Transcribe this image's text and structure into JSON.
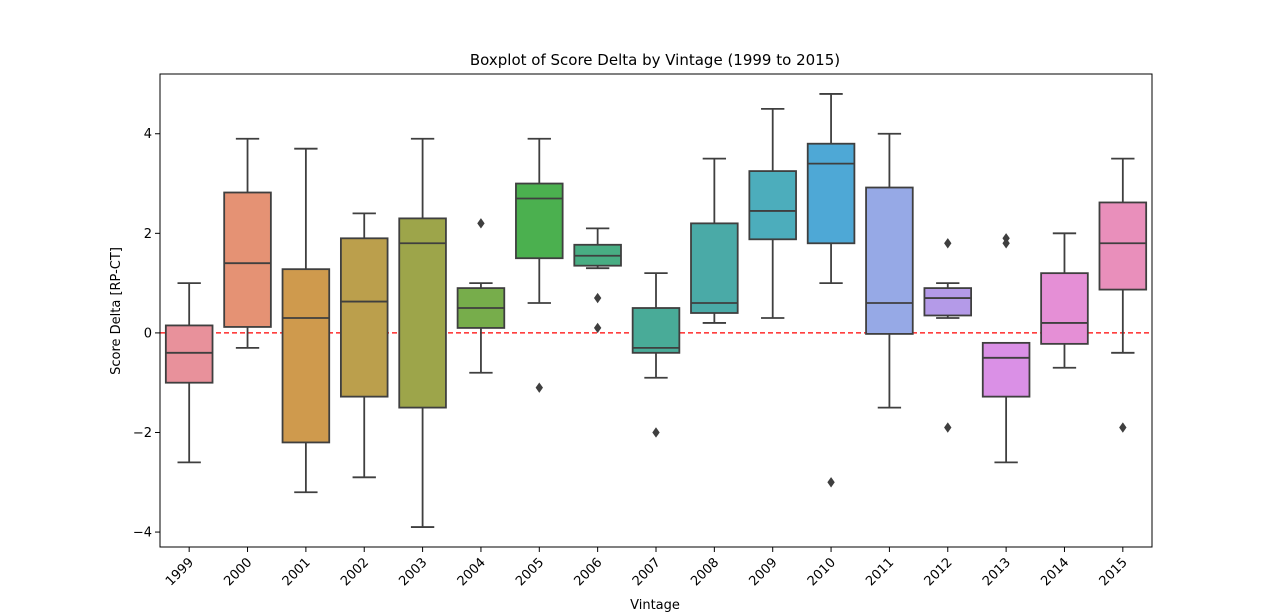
{
  "chart_data": {
    "type": "box",
    "title": "Boxplot of Score Delta by Vintage (1999 to 2015)",
    "xlabel": "Vintage",
    "ylabel": "Score Delta [RP-CT]",
    "ylim": [
      -4.3,
      5.2
    ],
    "yticks": [
      -4,
      -2,
      0,
      2,
      4
    ],
    "ytick_labels": [
      "−4",
      "−2",
      "0",
      "2",
      "4"
    ],
    "reference_line": {
      "y": 0,
      "color": "#ff0000",
      "style": "dashed"
    },
    "categories": [
      "1999",
      "2000",
      "2001",
      "2002",
      "2003",
      "2004",
      "2005",
      "2006",
      "2007",
      "2008",
      "2009",
      "2010",
      "2011",
      "2012",
      "2013",
      "2014",
      "2015"
    ],
    "boxes": [
      {
        "label": "1999",
        "color": "#e8919b",
        "whisker_low": -2.6,
        "q1": -1.0,
        "median": -0.4,
        "q3": 0.15,
        "whisker_high": 1.0,
        "outliers": []
      },
      {
        "label": "2000",
        "color": "#e59274",
        "whisker_low": -0.3,
        "q1": 0.12,
        "median": 1.4,
        "q3": 2.82,
        "whisker_high": 3.9,
        "outliers": []
      },
      {
        "label": "2001",
        "color": "#cf9a4d",
        "whisker_low": -3.2,
        "q1": -2.2,
        "median": 0.3,
        "q3": 1.28,
        "whisker_high": 3.7,
        "outliers": []
      },
      {
        "label": "2002",
        "color": "#bb9f4c",
        "whisker_low": -2.9,
        "q1": -1.28,
        "median": 0.63,
        "q3": 1.9,
        "whisker_high": 2.4,
        "outliers": []
      },
      {
        "label": "2003",
        "color": "#9da54a",
        "whisker_low": -3.9,
        "q1": -1.5,
        "median": 1.8,
        "q3": 2.3,
        "whisker_high": 3.9,
        "outliers": []
      },
      {
        "label": "2004",
        "color": "#77ad4b",
        "whisker_low": -0.8,
        "q1": 0.1,
        "median": 0.5,
        "q3": 0.9,
        "whisker_high": 1.0,
        "outliers": [
          2.2
        ]
      },
      {
        "label": "2005",
        "color": "#4bb04f",
        "whisker_low": 0.6,
        "q1": 1.5,
        "median": 2.7,
        "q3": 3.0,
        "whisker_high": 3.9,
        "outliers": [
          -1.1
        ]
      },
      {
        "label": "2006",
        "color": "#48ad83",
        "whisker_low": 1.3,
        "q1": 1.35,
        "median": 1.55,
        "q3": 1.77,
        "whisker_high": 2.1,
        "outliers": [
          0.7,
          0.1
        ]
      },
      {
        "label": "2007",
        "color": "#49ab98",
        "whisker_low": -0.9,
        "q1": -0.4,
        "median": -0.3,
        "q3": 0.5,
        "whisker_high": 1.2,
        "outliers": [
          -2.0
        ]
      },
      {
        "label": "2008",
        "color": "#4aaaa7",
        "whisker_low": 0.2,
        "q1": 0.4,
        "median": 0.6,
        "q3": 2.2,
        "whisker_high": 3.5,
        "outliers": []
      },
      {
        "label": "2009",
        "color": "#4cadbc",
        "whisker_low": 0.3,
        "q1": 1.88,
        "median": 2.45,
        "q3": 3.25,
        "whisker_high": 4.5,
        "outliers": []
      },
      {
        "label": "2010",
        "color": "#4ea8d6",
        "whisker_low": 1.0,
        "q1": 1.8,
        "median": 3.4,
        "q3": 3.8,
        "whisker_high": 4.8,
        "outliers": [
          -3.0
        ]
      },
      {
        "label": "2011",
        "color": "#96a9e6",
        "whisker_low": -1.5,
        "q1": -0.02,
        "median": 0.6,
        "q3": 2.92,
        "whisker_high": 4.0,
        "outliers": []
      },
      {
        "label": "2012",
        "color": "#b49ae8",
        "whisker_low": 0.3,
        "q1": 0.35,
        "median": 0.7,
        "q3": 0.9,
        "whisker_high": 1.0,
        "outliers": [
          1.8,
          -1.9
        ]
      },
      {
        "label": "2013",
        "color": "#da90e6",
        "whisker_low": -2.6,
        "q1": -1.28,
        "median": -0.5,
        "q3": -0.2,
        "whisker_high": -0.2,
        "outliers": [
          1.9,
          1.8
        ]
      },
      {
        "label": "2014",
        "color": "#e58fd6",
        "whisker_low": -0.7,
        "q1": -0.22,
        "median": 0.2,
        "q3": 1.2,
        "whisker_high": 2.0,
        "outliers": []
      },
      {
        "label": "2015",
        "color": "#e98fbb",
        "whisker_low": -0.4,
        "q1": 0.87,
        "median": 1.8,
        "q3": 2.62,
        "whisker_high": 3.5,
        "outliers": [
          -1.9
        ]
      }
    ]
  }
}
